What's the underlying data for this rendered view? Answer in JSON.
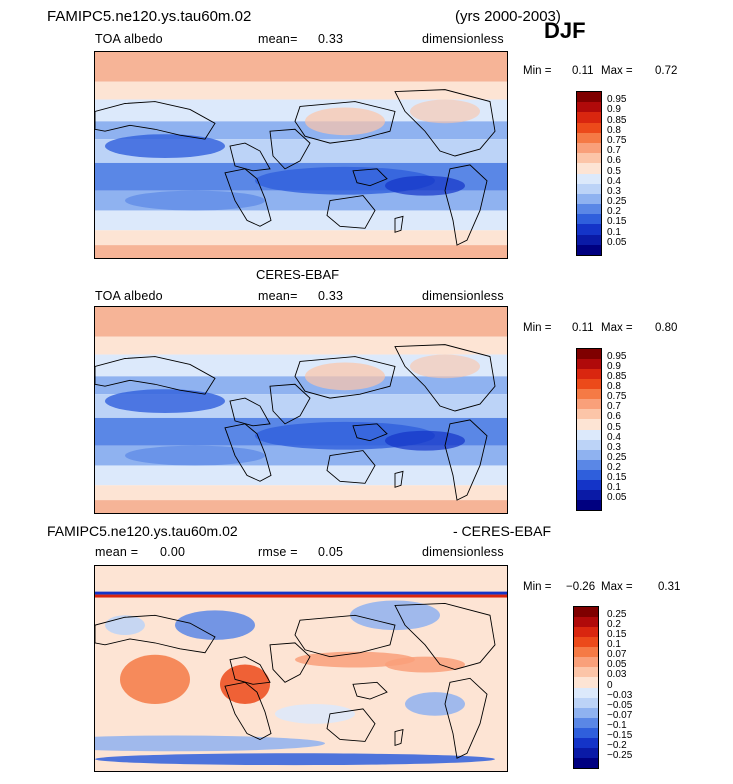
{
  "header": {
    "model_title": "FAMIPC5.ne120.ys.tau60m.02",
    "years": "(yrs 2000-2003)",
    "season": "DJF"
  },
  "panel1": {
    "variable": "TOA albedo",
    "mean_label": "mean=",
    "mean_value": "0.33",
    "units": "dimensionless",
    "min_label": "Min =",
    "min_value": "0.11",
    "max_label": "Max =",
    "max_value": "0.72"
  },
  "panel2": {
    "title": "CERES-EBAF",
    "variable": "TOA albedo",
    "mean_label": "mean=",
    "mean_value": "0.33",
    "units": "dimensionless",
    "min_label": "Min =",
    "min_value": "0.11",
    "max_label": "Max =",
    "max_value": "0.80"
  },
  "panel3": {
    "title_left": "FAMIPC5.ne120.ys.tau60m.02",
    "title_right": "- CERES-EBAF",
    "mean_label": "mean =",
    "mean_value": "0.00",
    "rmse_label": "rmse =",
    "rmse_value": "0.05",
    "units": "dimensionless",
    "min_label": "Min =",
    "min_value": "−0.26",
    "max_label": "Max =",
    "max_value": "0.31"
  },
  "colorbar_abs": {
    "labels": [
      "0.95",
      "0.9",
      "0.85",
      "0.8",
      "0.75",
      "0.7",
      "0.6",
      "0.5",
      "0.4",
      "0.3",
      "0.25",
      "0.2",
      "0.15",
      "0.1",
      "0.05"
    ],
    "colors": [
      "#7f0000",
      "#b00a0a",
      "#d9260f",
      "#ec4a1a",
      "#f57a45",
      "#f9a07a",
      "#fcc5a8",
      "#fde4d4",
      "#dce9fb",
      "#bcd3f7",
      "#8fb2f0",
      "#5a87e6",
      "#2f5fdc",
      "#1434c8",
      "#0a1aa6",
      "#000080"
    ]
  },
  "colorbar_diff": {
    "labels": [
      "0.25",
      "0.2",
      "0.15",
      "0.1",
      "0.07",
      "0.05",
      "0.03",
      "0",
      "−0.03",
      "−0.05",
      "−0.07",
      "−0.1",
      "−0.15",
      "−0.2",
      "−0.25"
    ],
    "colors": [
      "#7f0000",
      "#b00a0a",
      "#d9260f",
      "#ec4a1a",
      "#f57a45",
      "#f9a07a",
      "#fcc5a8",
      "#fde4d4",
      "#dce9fb",
      "#bcd3f7",
      "#8fb2f0",
      "#5a87e6",
      "#2f5fdc",
      "#1434c8",
      "#0a1aa6",
      "#000080"
    ]
  }
}
